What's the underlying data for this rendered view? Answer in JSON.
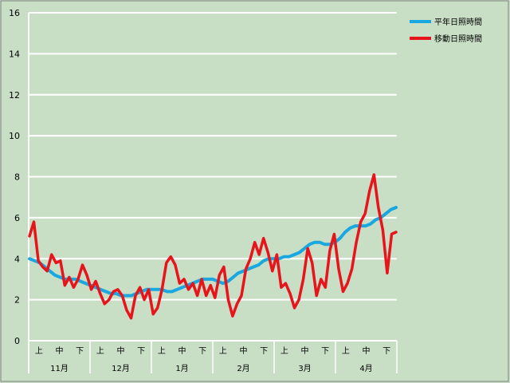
{
  "chart_data": {
    "type": "line",
    "title": "",
    "xlabel": "",
    "ylabel": "",
    "ylim": [
      0,
      16
    ],
    "yticks": [
      "0",
      "2",
      "4",
      "6",
      "8",
      "10",
      "12",
      "14",
      "16"
    ],
    "grid": true,
    "legend_position": "top-right",
    "sub_labels": [
      "上",
      "中",
      "下"
    ],
    "months": [
      "11月",
      "12月",
      "1月",
      "2月",
      "3月",
      "4月"
    ],
    "series": [
      {
        "name": "平年日照時間",
        "color": "#1aa7e0",
        "values": [
          4.0,
          3.9,
          3.8,
          3.6,
          3.4,
          3.2,
          3.1,
          3.0,
          3.0,
          3.0,
          2.9,
          2.8,
          2.7,
          2.6,
          2.5,
          2.4,
          2.3,
          2.3,
          2.2,
          2.2,
          2.2,
          2.3,
          2.4,
          2.5,
          2.5,
          2.5,
          2.5,
          2.4,
          2.4,
          2.5,
          2.6,
          2.7,
          2.8,
          2.9,
          3.0,
          3.0,
          3.0,
          2.9,
          2.8,
          2.9,
          3.1,
          3.3,
          3.4,
          3.5,
          3.6,
          3.7,
          3.9,
          4.0,
          4.0,
          4.0,
          4.1,
          4.1,
          4.2,
          4.3,
          4.5,
          4.7,
          4.8,
          4.8,
          4.7,
          4.7,
          4.8,
          5.0,
          5.3,
          5.5,
          5.6,
          5.6,
          5.6,
          5.7,
          5.9,
          6.0,
          6.2,
          6.4,
          6.5
        ]
      },
      {
        "name": "移動日照時間",
        "color": "#e8141c",
        "values": [
          5.1,
          5.8,
          3.9,
          3.6,
          3.4,
          4.2,
          3.8,
          3.9,
          2.7,
          3.1,
          2.6,
          3.0,
          3.7,
          3.2,
          2.5,
          2.9,
          2.3,
          1.8,
          2.0,
          2.4,
          2.5,
          2.2,
          1.5,
          1.1,
          2.2,
          2.6,
          2.0,
          2.5,
          1.3,
          1.6,
          2.5,
          3.8,
          4.1,
          3.7,
          2.8,
          3.0,
          2.5,
          2.8,
          2.2,
          3.0,
          2.2,
          2.7,
          2.1,
          3.2,
          3.6,
          2.0,
          1.2,
          1.8,
          2.2,
          3.5,
          4.0,
          4.8,
          4.2,
          5.0,
          4.3,
          3.4,
          4.2,
          2.6,
          2.8,
          2.3,
          1.6,
          2.0,
          3.0,
          4.5,
          3.8,
          2.2,
          3.0,
          2.6,
          4.4,
          5.2,
          3.5,
          2.4,
          2.8,
          3.5,
          4.8,
          5.8,
          6.2,
          7.3,
          8.1,
          6.5,
          5.4,
          3.3,
          5.2,
          5.3
        ]
      }
    ]
  }
}
